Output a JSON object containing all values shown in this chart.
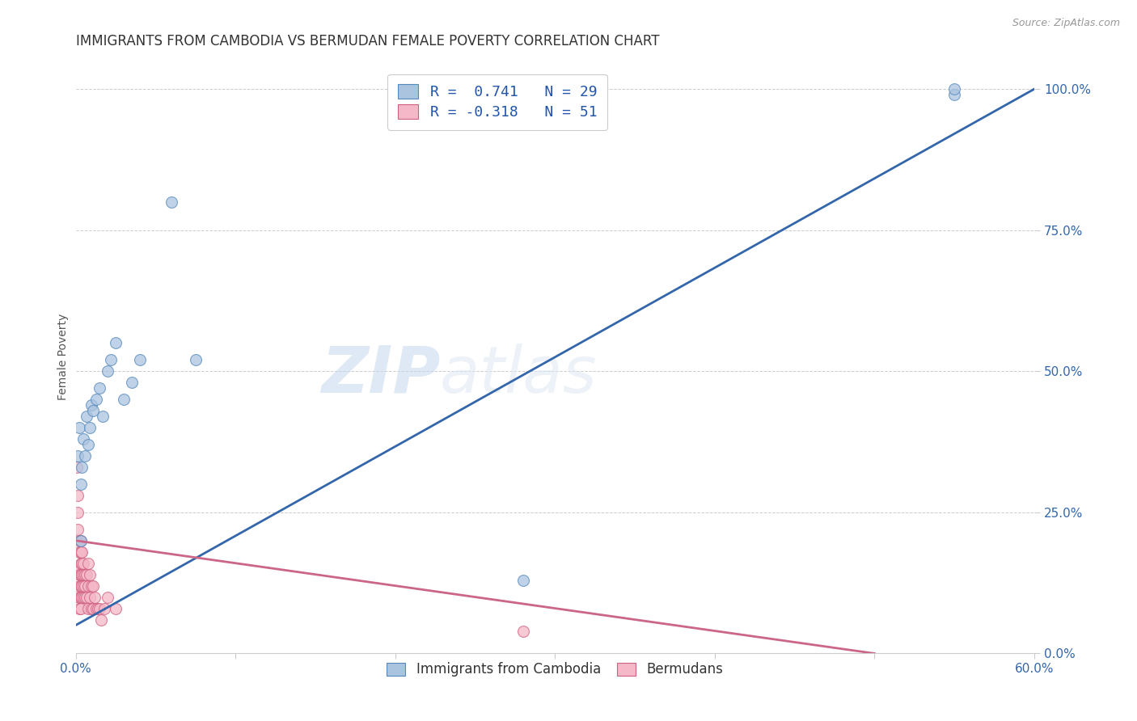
{
  "title": "IMMIGRANTS FROM CAMBODIA VS BERMUDAN FEMALE POVERTY CORRELATION CHART",
  "source": "Source: ZipAtlas.com",
  "ylabel": "Female Poverty",
  "right_yticks": [
    "0.0%",
    "25.0%",
    "50.0%",
    "75.0%",
    "100.0%"
  ],
  "right_ytick_vals": [
    0.0,
    0.25,
    0.5,
    0.75,
    1.0
  ],
  "watermark_zip": "ZIP",
  "watermark_atlas": "atlas",
  "blue_fill": "#aac4e0",
  "blue_edge": "#5588bb",
  "blue_line": "#3366aa",
  "pink_fill": "#f4b8c8",
  "pink_edge": "#d06080",
  "pink_line": "#cc6688",
  "legend_label1": "Immigrants from Cambodia",
  "legend_label2": "Bermudans",
  "cambodia_x": [
    0.001,
    0.002,
    0.003,
    0.004,
    0.005,
    0.006,
    0.007,
    0.008,
    0.009,
    0.01,
    0.011,
    0.013,
    0.015,
    0.017,
    0.02,
    0.022,
    0.025,
    0.03,
    0.035,
    0.04,
    0.06,
    0.075,
    0.003,
    0.28,
    0.55,
    0.55
  ],
  "cambodia_y": [
    0.35,
    0.4,
    0.3,
    0.33,
    0.38,
    0.35,
    0.42,
    0.37,
    0.4,
    0.44,
    0.43,
    0.45,
    0.47,
    0.42,
    0.5,
    0.52,
    0.55,
    0.45,
    0.48,
    0.52,
    0.8,
    0.52,
    0.2,
    0.13,
    0.99,
    1.0
  ],
  "bermuda_x": [
    0.0005,
    0.001,
    0.001,
    0.001,
    0.002,
    0.002,
    0.002,
    0.002,
    0.002,
    0.002,
    0.002,
    0.002,
    0.003,
    0.003,
    0.003,
    0.003,
    0.003,
    0.003,
    0.003,
    0.004,
    0.004,
    0.004,
    0.004,
    0.004,
    0.005,
    0.005,
    0.005,
    0.005,
    0.006,
    0.006,
    0.006,
    0.007,
    0.007,
    0.008,
    0.008,
    0.008,
    0.009,
    0.009,
    0.01,
    0.01,
    0.011,
    0.011,
    0.012,
    0.013,
    0.014,
    0.015,
    0.016,
    0.018,
    0.02,
    0.025,
    0.28
  ],
  "bermuda_y": [
    0.33,
    0.28,
    0.25,
    0.22,
    0.2,
    0.18,
    0.15,
    0.14,
    0.12,
    0.1,
    0.1,
    0.08,
    0.2,
    0.18,
    0.16,
    0.14,
    0.12,
    0.1,
    0.08,
    0.18,
    0.16,
    0.14,
    0.12,
    0.1,
    0.16,
    0.14,
    0.12,
    0.1,
    0.14,
    0.12,
    0.1,
    0.14,
    0.1,
    0.16,
    0.12,
    0.08,
    0.14,
    0.1,
    0.12,
    0.08,
    0.12,
    0.08,
    0.1,
    0.08,
    0.08,
    0.08,
    0.06,
    0.08,
    0.1,
    0.08,
    0.04
  ],
  "blue_line_x": [
    0.0,
    0.6
  ],
  "blue_line_y": [
    0.05,
    1.0
  ],
  "pink_line_x": [
    0.0,
    0.5
  ],
  "pink_line_y": [
    0.2,
    0.0
  ],
  "xlim": [
    0.0,
    0.6
  ],
  "ylim": [
    0.0,
    1.05
  ],
  "grid_color": "#cccccc",
  "background_color": "#ffffff"
}
